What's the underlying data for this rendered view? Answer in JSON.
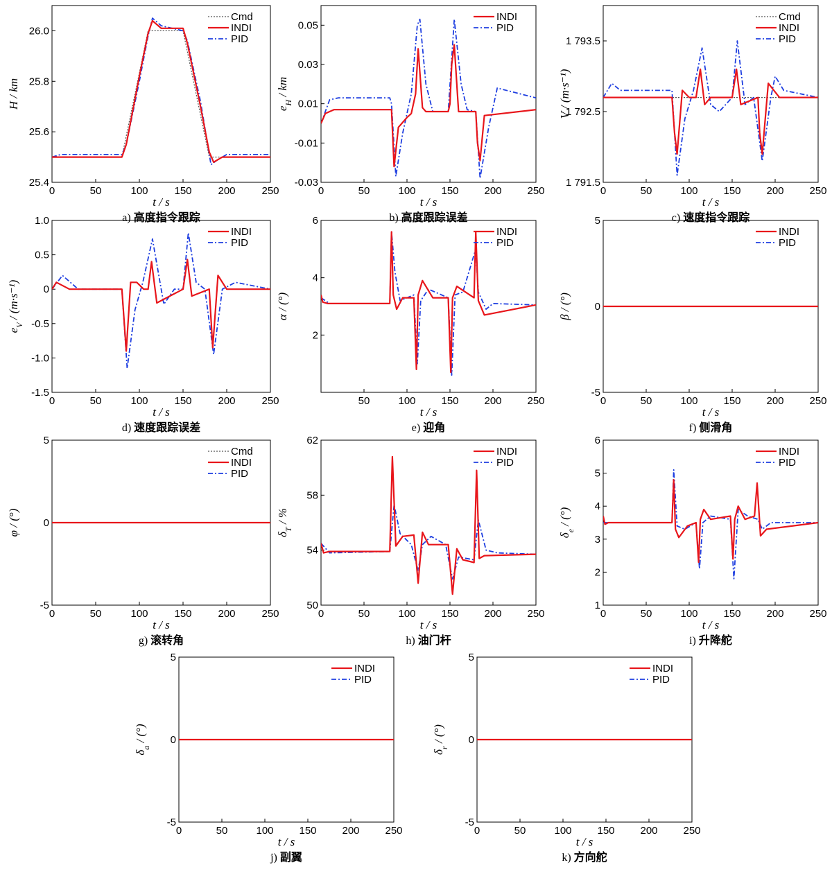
{
  "chart_data": [
    {
      "id": "a",
      "type": "line",
      "caption_letter": "a)",
      "caption": "高度指令跟踪",
      "ylabel": "H / km",
      "xlabel": "t / s",
      "xlim": [
        0,
        250
      ],
      "ylim": [
        25.4,
        26.1
      ],
      "xticks": [
        "0",
        "50",
        "100",
        "150",
        "200",
        "250"
      ],
      "yticks": [
        "25.4",
        "25.6",
        "25.8",
        "26.0"
      ],
      "legend": [
        "Cmd",
        "INDI",
        "PID"
      ],
      "series": [
        {
          "name": "Cmd",
          "x": [
            0,
            80,
            110,
            150,
            180,
            250
          ],
          "y": [
            25.5,
            25.5,
            26.0,
            26.0,
            25.5,
            25.5
          ]
        },
        {
          "name": "INDI",
          "x": [
            0,
            80,
            85,
            100,
            110,
            115,
            125,
            150,
            155,
            170,
            180,
            185,
            195,
            250
          ],
          "y": [
            25.5,
            25.5,
            25.55,
            25.82,
            25.99,
            26.04,
            26.01,
            26.01,
            25.95,
            25.7,
            25.52,
            25.48,
            25.5,
            25.5
          ]
        },
        {
          "name": "PID",
          "x": [
            0,
            10,
            80,
            85,
            100,
            110,
            115,
            125,
            150,
            155,
            170,
            182,
            190,
            200,
            250
          ],
          "y": [
            25.5,
            25.51,
            25.51,
            25.55,
            25.8,
            25.98,
            26.05,
            26.02,
            26.0,
            25.96,
            25.72,
            25.47,
            25.49,
            25.51,
            25.51
          ]
        }
      ]
    },
    {
      "id": "b",
      "type": "line",
      "caption_letter": "b)",
      "caption": "高度跟踪误差",
      "ylabel": "e_H / km",
      "xlabel": "t / s",
      "xlim": [
        0,
        250
      ],
      "ylim": [
        -0.03,
        0.06
      ],
      "xticks": [
        "0",
        "50",
        "100",
        "150",
        "200",
        "250"
      ],
      "yticks": [
        "-0.03",
        "-0.01",
        "0.01",
        "0.03",
        "0.05"
      ],
      "legend": [
        "INDI",
        "PID"
      ],
      "series": [
        {
          "name": "INDI",
          "x": [
            0,
            5,
            15,
            80,
            82,
            85,
            90,
            100,
            105,
            110,
            113,
            118,
            122,
            148,
            150,
            152,
            155,
            160,
            180,
            182,
            185,
            190,
            250
          ],
          "y": [
            0.0,
            0.005,
            0.007,
            0.007,
            0.007,
            -0.022,
            -0.002,
            0.003,
            0.005,
            0.015,
            0.038,
            0.008,
            0.006,
            0.006,
            0.01,
            0.03,
            0.04,
            0.006,
            0.006,
            -0.01,
            -0.019,
            0.004,
            0.007
          ]
        },
        {
          "name": "PID",
          "x": [
            0,
            10,
            20,
            80,
            82,
            87,
            95,
            105,
            112,
            115,
            122,
            130,
            148,
            155,
            163,
            170,
            180,
            185,
            195,
            205,
            250
          ],
          "y": [
            0.0,
            0.012,
            0.013,
            0.013,
            0.01,
            -0.027,
            -0.005,
            0.015,
            0.05,
            0.053,
            0.02,
            0.006,
            0.006,
            0.053,
            0.02,
            0.007,
            0.006,
            -0.028,
            -0.002,
            0.018,
            0.013
          ]
        }
      ]
    },
    {
      "id": "c",
      "type": "line",
      "caption_letter": "c)",
      "caption": "速度指令跟踪",
      "ylabel": "V / (m·s⁻¹)",
      "xlabel": "t / s",
      "xlim": [
        0,
        250
      ],
      "ylim": [
        1791.5,
        1794.0
      ],
      "xticks": [
        "0",
        "50",
        "100",
        "150",
        "200",
        "250"
      ],
      "yticks": [
        "1 791.5",
        "1 792.5",
        "1 793.5"
      ],
      "legend": [
        "Cmd",
        "INDI",
        "PID"
      ],
      "series": [
        {
          "name": "Cmd",
          "x": [
            0,
            250
          ],
          "y": [
            1792.7,
            1792.7
          ]
        },
        {
          "name": "INDI",
          "x": [
            0,
            80,
            83,
            86,
            92,
            100,
            108,
            113,
            118,
            125,
            150,
            155,
            160,
            180,
            182,
            185,
            192,
            205,
            250
          ],
          "y": [
            1792.7,
            1792.7,
            1792.2,
            1791.9,
            1792.8,
            1792.7,
            1792.7,
            1793.1,
            1792.6,
            1792.7,
            1792.7,
            1793.1,
            1792.6,
            1792.7,
            1792.2,
            1791.9,
            1792.9,
            1792.7,
            1792.7
          ]
        },
        {
          "name": "PID",
          "x": [
            0,
            10,
            20,
            80,
            86,
            95,
            105,
            115,
            125,
            135,
            150,
            156,
            165,
            175,
            185,
            195,
            200,
            210,
            250
          ],
          "y": [
            1792.7,
            1792.9,
            1792.8,
            1792.8,
            1791.6,
            1792.4,
            1792.8,
            1793.4,
            1792.6,
            1792.5,
            1792.7,
            1793.5,
            1792.6,
            1792.7,
            1791.8,
            1792.7,
            1793.0,
            1792.8,
            1792.7
          ]
        }
      ]
    },
    {
      "id": "d",
      "type": "line",
      "caption_letter": "d)",
      "caption": "速度跟踪误差",
      "ylabel": "e_V / (m·s⁻¹)",
      "xlabel": "t / s",
      "xlim": [
        0,
        250
      ],
      "ylim": [
        -1.5,
        1.0
      ],
      "xticks": [
        "0",
        "50",
        "100",
        "150",
        "200",
        "250"
      ],
      "yticks": [
        "-1.5",
        "-1.0",
        "-0.5",
        "0",
        "0.5",
        "1.0"
      ],
      "legend": [
        "INDI",
        "PID"
      ],
      "series": [
        {
          "name": "INDI",
          "x": [
            0,
            5,
            20,
            80,
            85,
            90,
            97,
            105,
            110,
            114,
            120,
            150,
            155,
            160,
            180,
            184,
            190,
            200,
            250
          ],
          "y": [
            0.0,
            0.1,
            0.0,
            0.0,
            -0.9,
            0.1,
            0.1,
            0.0,
            0.0,
            0.4,
            -0.2,
            0.0,
            0.43,
            -0.1,
            0.0,
            -0.85,
            0.2,
            0.0,
            0.0
          ]
        },
        {
          "name": "PID",
          "x": [
            0,
            12,
            30,
            80,
            86,
            95,
            104,
            115,
            128,
            140,
            150,
            156,
            165,
            175,
            185,
            195,
            210,
            250
          ],
          "y": [
            0.0,
            0.2,
            0.0,
            0.0,
            -1.15,
            -0.3,
            0.1,
            0.73,
            -0.22,
            0.0,
            0.0,
            0.82,
            0.1,
            0.0,
            -0.95,
            0.0,
            0.1,
            0.0
          ]
        }
      ]
    },
    {
      "id": "e",
      "type": "line",
      "caption_letter": "e)",
      "caption": "迎角",
      "ylabel": "α / (°)",
      "xlabel": "t / s",
      "xlim": [
        0,
        250
      ],
      "ylim": [
        0,
        6
      ],
      "xticks": [
        "50",
        "100",
        "150",
        "200",
        "250"
      ],
      "yticks": [
        "2",
        "4",
        "6"
      ],
      "legend": [
        "INDI",
        "PID"
      ],
      "series": [
        {
          "name": "INDI",
          "x": [
            0,
            2,
            8,
            80,
            82,
            84,
            88,
            95,
            108,
            111,
            113,
            118,
            130,
            148,
            151,
            153,
            158,
            178,
            180,
            183,
            190,
            250
          ],
          "y": [
            3.4,
            3.15,
            3.1,
            3.1,
            5.6,
            3.4,
            2.9,
            3.3,
            3.3,
            0.8,
            3.4,
            3.9,
            3.3,
            3.3,
            0.7,
            3.3,
            3.7,
            3.3,
            5.6,
            3.2,
            2.7,
            3.05
          ]
        },
        {
          "name": "PID",
          "x": [
            0,
            10,
            80,
            82,
            86,
            92,
            108,
            112,
            116,
            125,
            148,
            152,
            156,
            165,
            180,
            183,
            192,
            200,
            250
          ],
          "y": [
            3.3,
            3.1,
            3.1,
            5.6,
            4.2,
            3.2,
            3.4,
            1.0,
            3.2,
            3.6,
            3.3,
            0.6,
            3.4,
            3.5,
            5.0,
            3.5,
            2.9,
            3.1,
            3.05
          ]
        }
      ]
    },
    {
      "id": "f",
      "type": "line",
      "caption_letter": "f)",
      "caption": "侧滑角",
      "ylabel": "β / (°)",
      "xlabel": "t / s",
      "xlim": [
        0,
        250
      ],
      "ylim": [
        -5,
        5
      ],
      "xticks": [
        "0",
        "50",
        "100",
        "150",
        "200",
        "250"
      ],
      "yticks": [
        "-5",
        "0",
        "5"
      ],
      "legend": [
        "INDI",
        "PID"
      ],
      "series": [
        {
          "name": "INDI",
          "x": [
            0,
            250
          ],
          "y": [
            0,
            0
          ]
        },
        {
          "name": "PID",
          "x": [
            0,
            250
          ],
          "y": [
            0,
            0
          ]
        }
      ]
    },
    {
      "id": "g",
      "type": "line",
      "caption_letter": "g)",
      "caption": "滚转角",
      "ylabel": "φ / (°)",
      "xlabel": "t / s",
      "xlim": [
        0,
        250
      ],
      "ylim": [
        -5,
        5
      ],
      "xticks": [
        "0",
        "50",
        "100",
        "150",
        "200",
        "250"
      ],
      "yticks": [
        "-5",
        "0",
        "5"
      ],
      "legend": [
        "Cmd",
        "INDI",
        "PID"
      ],
      "series": [
        {
          "name": "Cmd",
          "x": [
            0,
            250
          ],
          "y": [
            0,
            0
          ]
        },
        {
          "name": "INDI",
          "x": [
            0,
            250
          ],
          "y": [
            0,
            0
          ]
        },
        {
          "name": "PID",
          "x": [
            0,
            250
          ],
          "y": [
            0,
            0
          ]
        }
      ]
    },
    {
      "id": "h",
      "type": "line",
      "caption_letter": "h)",
      "caption": "油门杆",
      "ylabel": "δ_T / %",
      "xlabel": "t / s",
      "xlim": [
        0,
        250
      ],
      "ylim": [
        50,
        62
      ],
      "xticks": [
        "0",
        "50",
        "100",
        "150",
        "200",
        "250"
      ],
      "yticks": [
        "50",
        "54",
        "58",
        "62"
      ],
      "legend": [
        "INDI",
        "PID"
      ],
      "series": [
        {
          "name": "INDI",
          "x": [
            0,
            3,
            10,
            80,
            83,
            87,
            95,
            108,
            113,
            118,
            125,
            148,
            153,
            158,
            165,
            178,
            181,
            184,
            190,
            250
          ],
          "y": [
            54.5,
            53.8,
            53.9,
            53.9,
            60.8,
            54.3,
            55.0,
            55.1,
            51.6,
            55.3,
            54.4,
            54.4,
            50.8,
            54.1,
            53.3,
            53.1,
            59.8,
            53.4,
            53.6,
            53.7
          ]
        },
        {
          "name": "PID",
          "x": [
            0,
            10,
            80,
            85,
            92,
            105,
            113,
            118,
            128,
            145,
            153,
            160,
            178,
            183,
            192,
            205,
            250
          ],
          "y": [
            54.5,
            53.8,
            53.9,
            57.3,
            55.2,
            54.4,
            52.5,
            54.4,
            55.0,
            54.4,
            51.9,
            53.5,
            53.3,
            56.2,
            54.0,
            53.8,
            53.7
          ]
        }
      ]
    },
    {
      "id": "i",
      "type": "line",
      "caption_letter": "i)",
      "caption": "升降舵",
      "ylabel": "δ_e / (°)",
      "xlabel": "t / s",
      "xlim": [
        0,
        250
      ],
      "ylim": [
        1,
        6
      ],
      "xticks": [
        "0",
        "50",
        "100",
        "150",
        "200",
        "250"
      ],
      "yticks": [
        "1",
        "2",
        "3",
        "4",
        "5",
        "6"
      ],
      "legend": [
        "INDI",
        "PID"
      ],
      "series": [
        {
          "name": "INDI",
          "x": [
            0,
            2,
            6,
            80,
            82,
            84,
            88,
            98,
            108,
            111,
            113,
            117,
            125,
            148,
            151,
            153,
            157,
            165,
            176,
            179,
            183,
            190,
            250
          ],
          "y": [
            3.7,
            3.45,
            3.5,
            3.5,
            4.8,
            3.3,
            3.05,
            3.4,
            3.5,
            2.3,
            3.6,
            3.9,
            3.6,
            3.7,
            2.4,
            3.6,
            4.0,
            3.6,
            3.7,
            4.7,
            3.1,
            3.3,
            3.5
          ]
        },
        {
          "name": "PID",
          "x": [
            0,
            10,
            80,
            82,
            86,
            95,
            108,
            112,
            116,
            125,
            148,
            152,
            157,
            168,
            180,
            185,
            195,
            250
          ],
          "y": [
            3.5,
            3.5,
            3.5,
            5.1,
            3.4,
            3.3,
            3.5,
            2.1,
            3.5,
            3.7,
            3.6,
            1.8,
            3.9,
            3.7,
            3.6,
            3.3,
            3.5,
            3.5
          ]
        }
      ]
    },
    {
      "id": "j",
      "type": "line",
      "caption_letter": "j)",
      "caption": "副翼",
      "ylabel": "δ_a / (°)",
      "xlabel": "t / s",
      "xlim": [
        0,
        250
      ],
      "ylim": [
        -5,
        5
      ],
      "xticks": [
        "0",
        "50",
        "100",
        "150",
        "200",
        "250"
      ],
      "yticks": [
        "-5",
        "0",
        "5"
      ],
      "legend": [
        "INDI",
        "PID"
      ],
      "series": [
        {
          "name": "INDI",
          "x": [
            0,
            250
          ],
          "y": [
            0,
            0
          ]
        },
        {
          "name": "PID",
          "x": [
            0,
            250
          ],
          "y": [
            0,
            0
          ]
        }
      ]
    },
    {
      "id": "k",
      "type": "line",
      "caption_letter": "k)",
      "caption": "方向舵",
      "ylabel": "δ_r / (°)",
      "xlabel": "t / s",
      "xlim": [
        0,
        250
      ],
      "ylim": [
        -5,
        5
      ],
      "xticks": [
        "0",
        "50",
        "100",
        "150",
        "200",
        "250"
      ],
      "yticks": [
        "-5",
        "0",
        "5"
      ],
      "legend": [
        "INDI",
        "PID"
      ],
      "series": [
        {
          "name": "INDI",
          "x": [
            0,
            250
          ],
          "y": [
            0,
            0
          ]
        },
        {
          "name": "PID",
          "x": [
            0,
            250
          ],
          "y": [
            0,
            0
          ]
        }
      ]
    }
  ],
  "colors": {
    "Cmd": "#555555",
    "INDI": "#e8161b",
    "PID": "#1f3fe0"
  },
  "line_styles": {
    "Cmd": "dotted",
    "INDI": "solid",
    "PID": "dash-dot"
  }
}
